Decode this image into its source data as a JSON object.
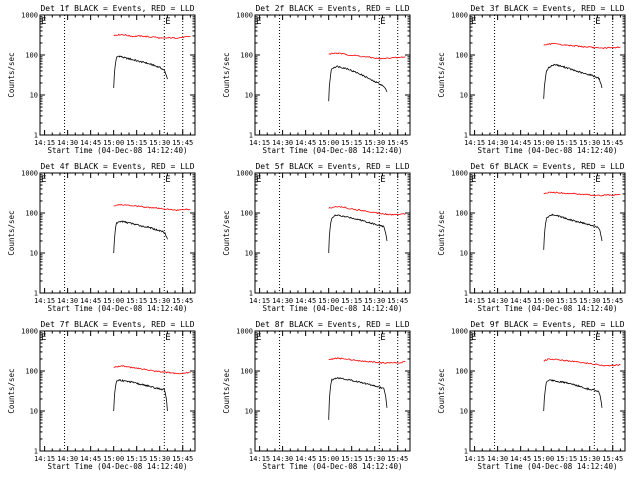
{
  "chart_data": [
    {
      "type": "line",
      "title": "Det 1f BLACK = Events, RED = LLD",
      "xlabel": "Start Time (04-Dec-08 14:12:40)",
      "ylabel": "Counts/sec",
      "yscale": "log",
      "ylim": [
        1,
        1000
      ],
      "xlim": [
        "14:12",
        "15:53"
      ],
      "xticks": [
        "14:15",
        "14:30",
        "14:45",
        "15:00",
        "15:15",
        "15:30",
        "15:45"
      ],
      "yticks": [
        "1",
        "10",
        "100",
        "1000"
      ],
      "dotted_lines_at": [
        "14:12",
        "14:28",
        "15:33",
        "15:45"
      ],
      "marker": "E",
      "series": [
        {
          "color": "#000000",
          "x_range": [
            "15:00",
            "15:35"
          ],
          "values": [
            15,
            85,
            95,
            90,
            85,
            82,
            80,
            76,
            74,
            70,
            68,
            66,
            64,
            60,
            58,
            55,
            52,
            50,
            45,
            40,
            25
          ]
        },
        {
          "color": "#ff0000",
          "x_range": [
            "15:00",
            "15:50"
          ],
          "values": [
            310,
            320,
            325,
            315,
            300,
            290,
            300,
            295,
            290,
            280,
            285,
            270,
            260,
            265,
            270,
            265,
            270,
            275,
            285,
            290
          ]
        }
      ]
    },
    {
      "type": "line",
      "title": "Det 2f BLACK = Events, RED = LLD",
      "xlabel": "Start Time (04-Dec-08 14:12:40)",
      "ylabel": "Counts/sec",
      "yscale": "log",
      "ylim": [
        1,
        1000
      ],
      "xlim": [
        "14:12",
        "15:53"
      ],
      "xticks": [
        "14:15",
        "14:30",
        "14:45",
        "15:00",
        "15:15",
        "15:30",
        "15:45"
      ],
      "yticks": [
        "1",
        "10",
        "100",
        "1000"
      ],
      "dotted_lines_at": [
        "14:12",
        "14:28",
        "15:33",
        "15:45"
      ],
      "marker": "E",
      "series": [
        {
          "color": "#000000",
          "x_range": [
            "15:00",
            "15:38"
          ],
          "values": [
            7,
            45,
            50,
            52,
            50,
            48,
            46,
            44,
            40,
            38,
            35,
            33,
            30,
            28,
            25,
            23,
            21,
            20,
            18,
            16,
            12
          ]
        },
        {
          "color": "#ff0000",
          "x_range": [
            "15:00",
            "15:50"
          ],
          "values": [
            105,
            110,
            112,
            108,
            105,
            100,
            98,
            96,
            92,
            90,
            88,
            85,
            82,
            80,
            82,
            84,
            86,
            85,
            88,
            90
          ]
        }
      ]
    },
    {
      "type": "line",
      "title": "Det 3f BLACK = Events, RED = LLD",
      "xlabel": "Start Time (04-Dec-08 14:12:40)",
      "ylabel": "Counts/sec",
      "yscale": "log",
      "ylim": [
        1,
        1000
      ],
      "xlim": [
        "14:12",
        "15:53"
      ],
      "xticks": [
        "14:15",
        "14:30",
        "14:45",
        "15:00",
        "15:15",
        "15:30",
        "15:45"
      ],
      "yticks": [
        "1",
        "10",
        "100",
        "1000"
      ],
      "dotted_lines_at": [
        "14:12",
        "14:28",
        "15:33",
        "15:45"
      ],
      "marker": "E",
      "series": [
        {
          "color": "#000000",
          "x_range": [
            "15:00",
            "15:38"
          ],
          "values": [
            8,
            40,
            50,
            55,
            58,
            55,
            52,
            50,
            48,
            45,
            42,
            40,
            38,
            36,
            34,
            33,
            32,
            30,
            28,
            26,
            15
          ]
        },
        {
          "color": "#ff0000",
          "x_range": [
            "15:00",
            "15:50"
          ],
          "values": [
            175,
            185,
            190,
            188,
            182,
            178,
            175,
            172,
            168,
            165,
            160,
            158,
            155,
            150,
            148,
            150,
            152,
            150,
            155,
            160
          ]
        }
      ]
    },
    {
      "type": "line",
      "title": "Det 4f BLACK = Events, RED = LLD",
      "xlabel": "Start Time (04-Dec-08 14:12:40)",
      "ylabel": "Counts/sec",
      "yscale": "log",
      "ylim": [
        1,
        1000
      ],
      "xlim": [
        "14:12",
        "15:53"
      ],
      "xticks": [
        "14:15",
        "14:30",
        "14:45",
        "15:00",
        "15:15",
        "15:30",
        "15:45"
      ],
      "yticks": [
        "1",
        "10",
        "100",
        "1000"
      ],
      "dotted_lines_at": [
        "14:12",
        "14:28",
        "15:33",
        "15:45"
      ],
      "marker": "E",
      "series": [
        {
          "color": "#000000",
          "x_range": [
            "15:00",
            "15:35"
          ],
          "values": [
            10,
            55,
            60,
            62,
            60,
            58,
            56,
            54,
            52,
            50,
            48,
            46,
            45,
            44,
            42,
            40,
            38,
            36,
            35,
            33,
            22
          ]
        },
        {
          "color": "#ff0000",
          "x_range": [
            "15:00",
            "15:50"
          ],
          "values": [
            150,
            160,
            162,
            158,
            155,
            150,
            148,
            145,
            140,
            138,
            135,
            130,
            128,
            125,
            122,
            120,
            118,
            122,
            125,
            120
          ]
        }
      ]
    },
    {
      "type": "line",
      "title": "Det 5f BLACK = Events, RED = LLD",
      "xlabel": "Start Time (04-Dec-08 14:12:40)",
      "ylabel": "Counts/sec",
      "yscale": "log",
      "ylim": [
        1,
        1000
      ],
      "xlim": [
        "14:12",
        "15:53"
      ],
      "xticks": [
        "14:15",
        "14:30",
        "14:45",
        "15:00",
        "15:15",
        "15:30",
        "15:45"
      ],
      "yticks": [
        "1",
        "10",
        "100",
        "1000"
      ],
      "dotted_lines_at": [
        "14:12",
        "14:28",
        "15:33",
        "15:45"
      ],
      "marker": "E",
      "series": [
        {
          "color": "#000000",
          "x_range": [
            "15:00",
            "15:38"
          ],
          "values": [
            10,
            75,
            85,
            88,
            85,
            82,
            80,
            78,
            75,
            72,
            70,
            66,
            64,
            60,
            58,
            55,
            52,
            50,
            48,
            45,
            20
          ]
        },
        {
          "color": "#ff0000",
          "x_range": [
            "15:00",
            "15:50"
          ],
          "values": [
            130,
            140,
            145,
            142,
            138,
            130,
            125,
            120,
            118,
            112,
            108,
            105,
            100,
            98,
            95,
            92,
            90,
            92,
            95,
            95
          ]
        }
      ]
    },
    {
      "type": "line",
      "title": "Det 6f BLACK = Events, RED = LLD",
      "xlabel": "Start Time (04-Dec-08 14:12:40)",
      "ylabel": "Counts/sec",
      "yscale": "log",
      "ylim": [
        1,
        1000
      ],
      "xlim": [
        "14:12",
        "15:53"
      ],
      "xticks": [
        "14:15",
        "14:30",
        "14:45",
        "15:00",
        "15:15",
        "15:30",
        "15:45"
      ],
      "yticks": [
        "1",
        "10",
        "100",
        "1000"
      ],
      "dotted_lines_at": [
        "14:12",
        "14:28",
        "15:33",
        "15:45"
      ],
      "marker": "E",
      "series": [
        {
          "color": "#000000",
          "x_range": [
            "15:00",
            "15:38"
          ],
          "values": [
            12,
            75,
            85,
            90,
            88,
            85,
            80,
            76,
            72,
            68,
            65,
            62,
            60,
            58,
            55,
            52,
            50,
            48,
            45,
            42,
            20
          ]
        },
        {
          "color": "#ff0000",
          "x_range": [
            "15:00",
            "15:50"
          ],
          "values": [
            310,
            320,
            330,
            325,
            320,
            315,
            310,
            305,
            300,
            295,
            290,
            285,
            280,
            275,
            275,
            280,
            282,
            280,
            285,
            285
          ]
        }
      ]
    },
    {
      "type": "line",
      "title": "Det 7f BLACK = Events, RED = LLD",
      "xlabel": "Start Time (04-Dec-08 14:12:40)",
      "ylabel": "Counts/sec",
      "yscale": "log",
      "ylim": [
        1,
        1000
      ],
      "xlim": [
        "14:12",
        "15:53"
      ],
      "xticks": [
        "14:15",
        "14:30",
        "14:45",
        "15:00",
        "15:15",
        "15:30",
        "15:45"
      ],
      "yticks": [
        "1",
        "10",
        "100",
        "1000"
      ],
      "dotted_lines_at": [
        "14:12",
        "14:28",
        "15:33",
        "15:45"
      ],
      "marker": "E",
      "series": [
        {
          "color": "#000000",
          "x_range": [
            "15:00",
            "15:35"
          ],
          "values": [
            10,
            55,
            60,
            58,
            56,
            55,
            54,
            52,
            50,
            48,
            46,
            45,
            44,
            42,
            40,
            38,
            37,
            36,
            35,
            34,
            10
          ]
        },
        {
          "color": "#ff0000",
          "x_range": [
            "15:00",
            "15:50"
          ],
          "values": [
            120,
            130,
            135,
            130,
            125,
            120,
            115,
            112,
            110,
            105,
            100,
            98,
            95,
            92,
            90,
            88,
            85,
            88,
            90,
            92
          ]
        }
      ]
    },
    {
      "type": "line",
      "title": "Det 8f BLACK = Events, RED = LLD",
      "xlabel": "Start Time (04-Dec-08 14:12:40)",
      "ylabel": "Counts/sec",
      "yscale": "log",
      "ylim": [
        1,
        1000
      ],
      "xlim": [
        "14:12",
        "15:53"
      ],
      "xticks": [
        "14:15",
        "14:30",
        "14:45",
        "15:00",
        "15:15",
        "15:30",
        "15:45"
      ],
      "yticks": [
        "1",
        "10",
        "100",
        "1000"
      ],
      "dotted_lines_at": [
        "14:12",
        "14:28",
        "15:33",
        "15:45"
      ],
      "marker": "E",
      "series": [
        {
          "color": "#000000",
          "x_range": [
            "15:00",
            "15:38"
          ],
          "values": [
            6,
            60,
            65,
            68,
            66,
            64,
            62,
            60,
            58,
            56,
            54,
            52,
            50,
            48,
            46,
            44,
            42,
            40,
            38,
            36,
            12
          ]
        },
        {
          "color": "#ff0000",
          "x_range": [
            "15:00",
            "15:50"
          ],
          "values": [
            190,
            200,
            210,
            205,
            200,
            195,
            190,
            185,
            180,
            175,
            170,
            168,
            165,
            160,
            158,
            160,
            162,
            160,
            165,
            170
          ]
        }
      ]
    },
    {
      "type": "line",
      "title": "Det 9f BLACK = Events, RED = LLD",
      "xlabel": "Start Time (04-Dec-08 14:12:40)",
      "ylabel": "Counts/sec",
      "yscale": "log",
      "ylim": [
        1,
        1000
      ],
      "xlim": [
        "14:12",
        "15:53"
      ],
      "xticks": [
        "14:15",
        "14:30",
        "14:45",
        "15:00",
        "15:15",
        "15:30",
        "15:45"
      ],
      "yticks": [
        "1",
        "10",
        "100",
        "1000"
      ],
      "dotted_lines_at": [
        "14:12",
        "14:28",
        "15:33",
        "15:45"
      ],
      "marker": "E",
      "series": [
        {
          "color": "#000000",
          "x_range": [
            "15:00",
            "15:38"
          ],
          "values": [
            10,
            55,
            60,
            58,
            56,
            55,
            53,
            52,
            50,
            48,
            46,
            44,
            42,
            40,
            38,
            36,
            35,
            34,
            32,
            30,
            12
          ]
        },
        {
          "color": "#ff0000",
          "x_range": [
            "15:00",
            "15:50"
          ],
          "values": [
            180,
            195,
            200,
            195,
            190,
            185,
            180,
            175,
            170,
            165,
            160,
            155,
            150,
            145,
            140,
            138,
            135,
            138,
            140,
            145
          ]
        }
      ]
    }
  ]
}
